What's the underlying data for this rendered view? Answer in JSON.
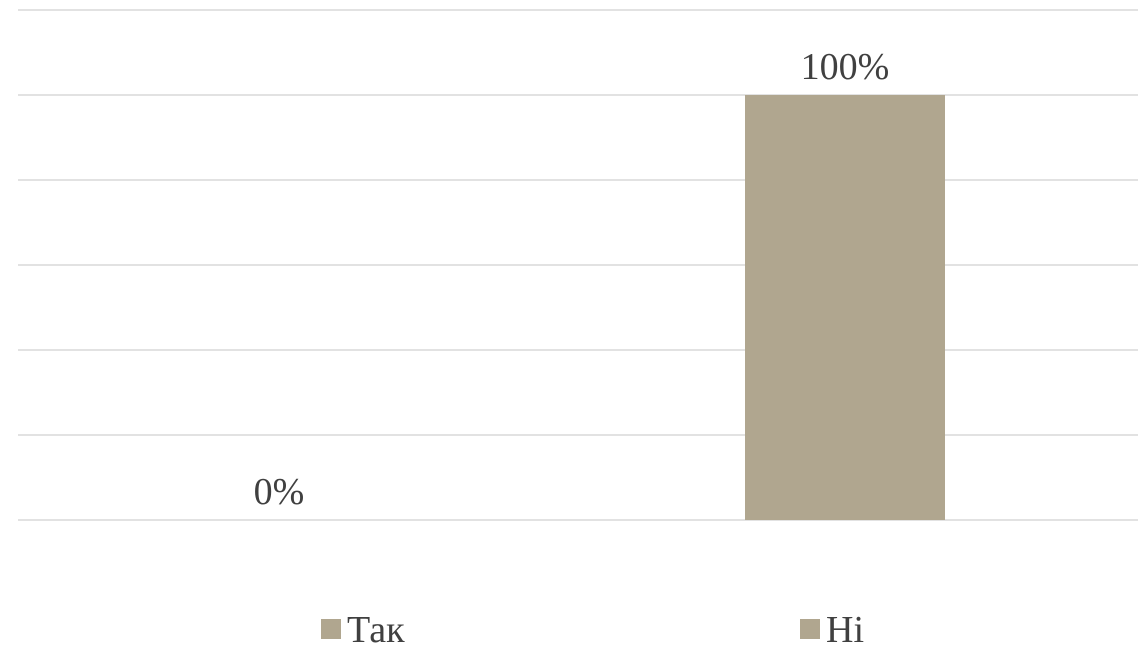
{
  "chart_data": {
    "type": "bar",
    "categories": [
      "Так",
      "Ні"
    ],
    "series": [
      {
        "values": [
          0,
          100
        ],
        "color": "#b0a68f"
      }
    ],
    "data_labels": [
      "0%",
      "100%"
    ],
    "ylim": [
      0,
      100
    ],
    "grid": true,
    "legend": {
      "placement": "bottom",
      "entries": [
        "Так",
        "Ні"
      ]
    },
    "colors": {
      "bar": "#b0a68f",
      "grid": "#d9d9d9",
      "text": "#404040"
    }
  }
}
